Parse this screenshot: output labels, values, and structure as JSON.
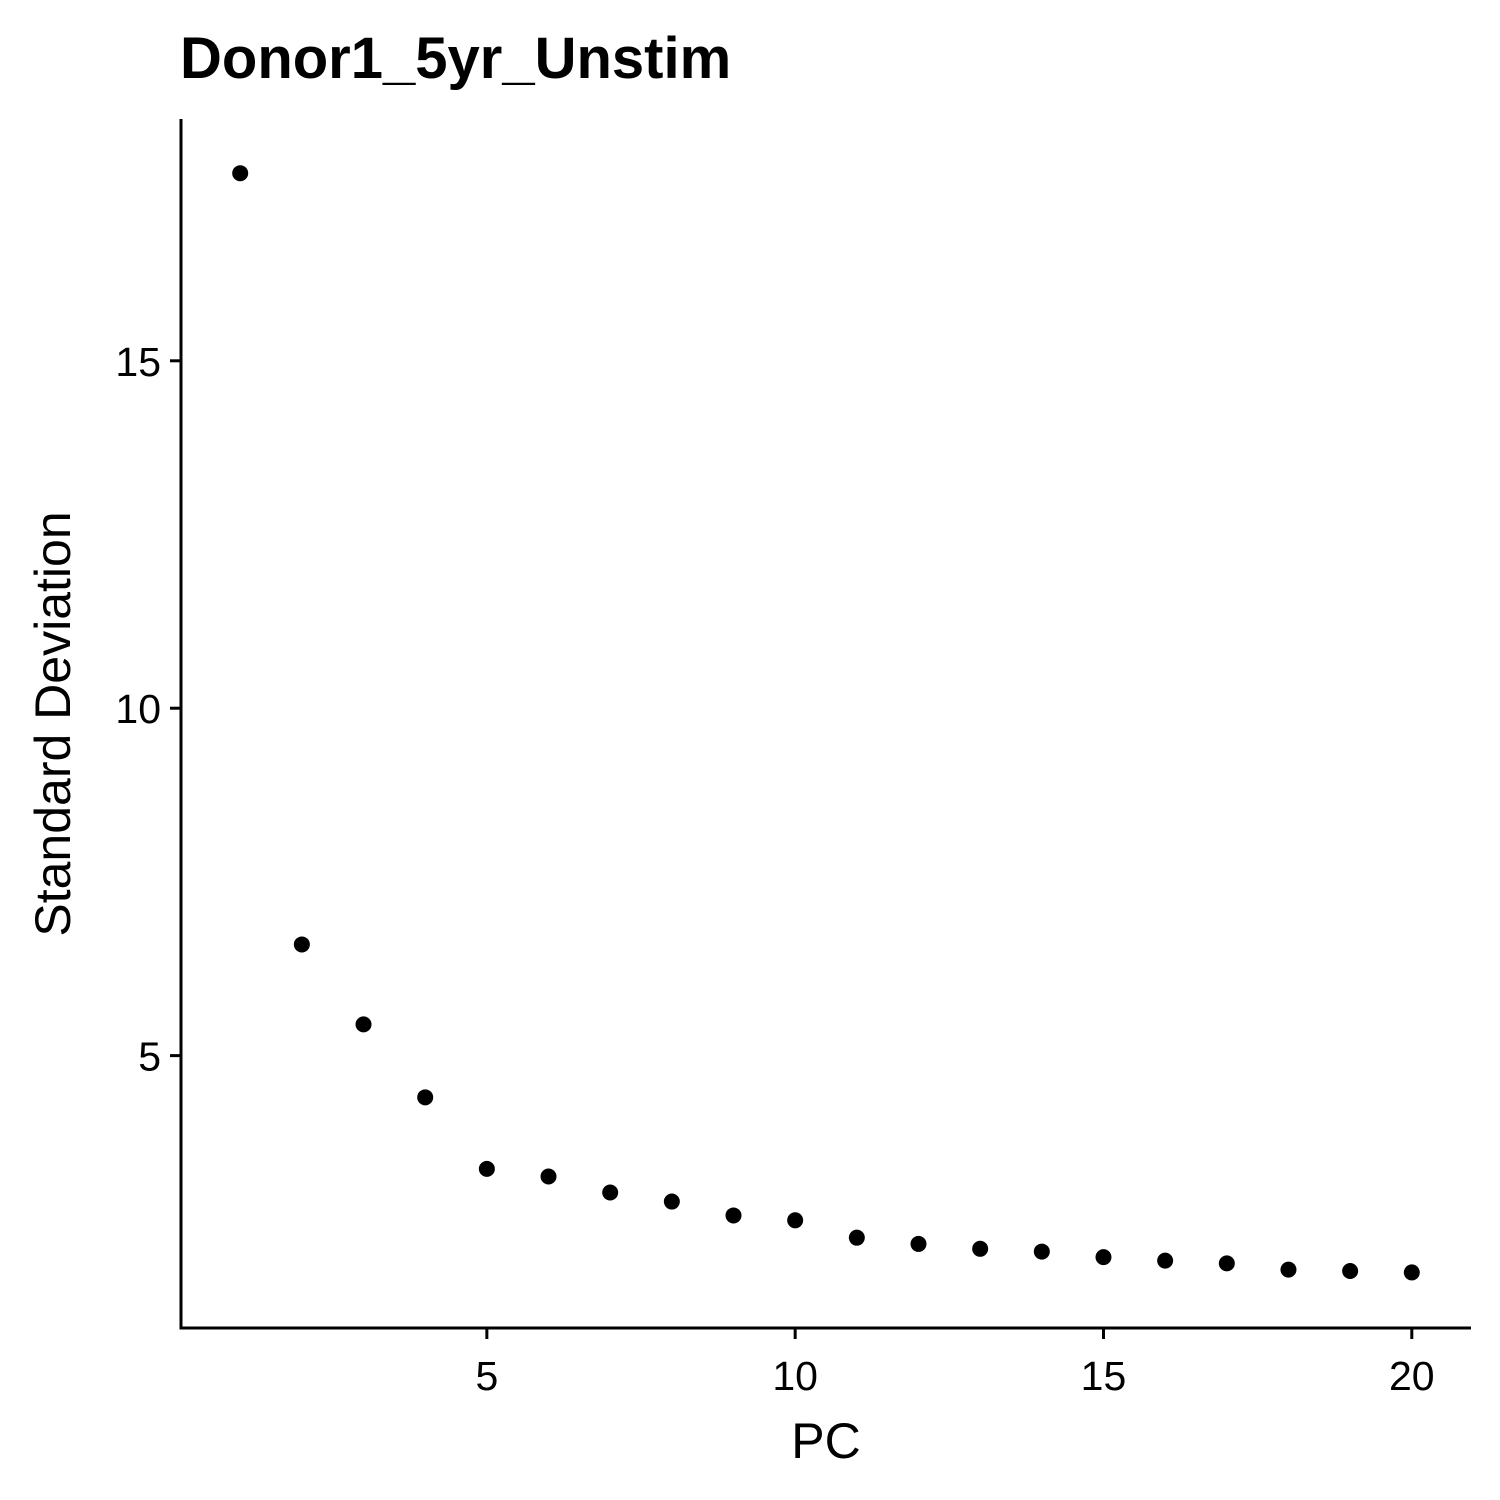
{
  "chart_data": {
    "type": "scatter",
    "title": "Donor1_5yr_Unstim",
    "xlabel": "PC",
    "ylabel": "Standard Deviation",
    "x": [
      1,
      2,
      3,
      4,
      5,
      6,
      7,
      8,
      9,
      10,
      11,
      12,
      13,
      14,
      15,
      16,
      17,
      18,
      19,
      20
    ],
    "y": [
      17.7,
      6.6,
      5.45,
      4.4,
      3.37,
      3.26,
      3.03,
      2.9,
      2.7,
      2.63,
      2.38,
      2.29,
      2.22,
      2.18,
      2.1,
      2.05,
      2.01,
      1.92,
      1.9,
      1.88
    ],
    "xlim": [
      0.04,
      20.96
    ],
    "ylim": [
      1.08,
      18.48
    ],
    "xticks": [
      5,
      10,
      15,
      20
    ],
    "yticks": [
      5,
      10,
      15
    ],
    "xtick_labels": [
      "5",
      "10",
      "15",
      "20"
    ],
    "ytick_labels": [
      "5",
      "10",
      "15"
    ],
    "grid": false,
    "legend": "none",
    "point_color": "#000000"
  }
}
